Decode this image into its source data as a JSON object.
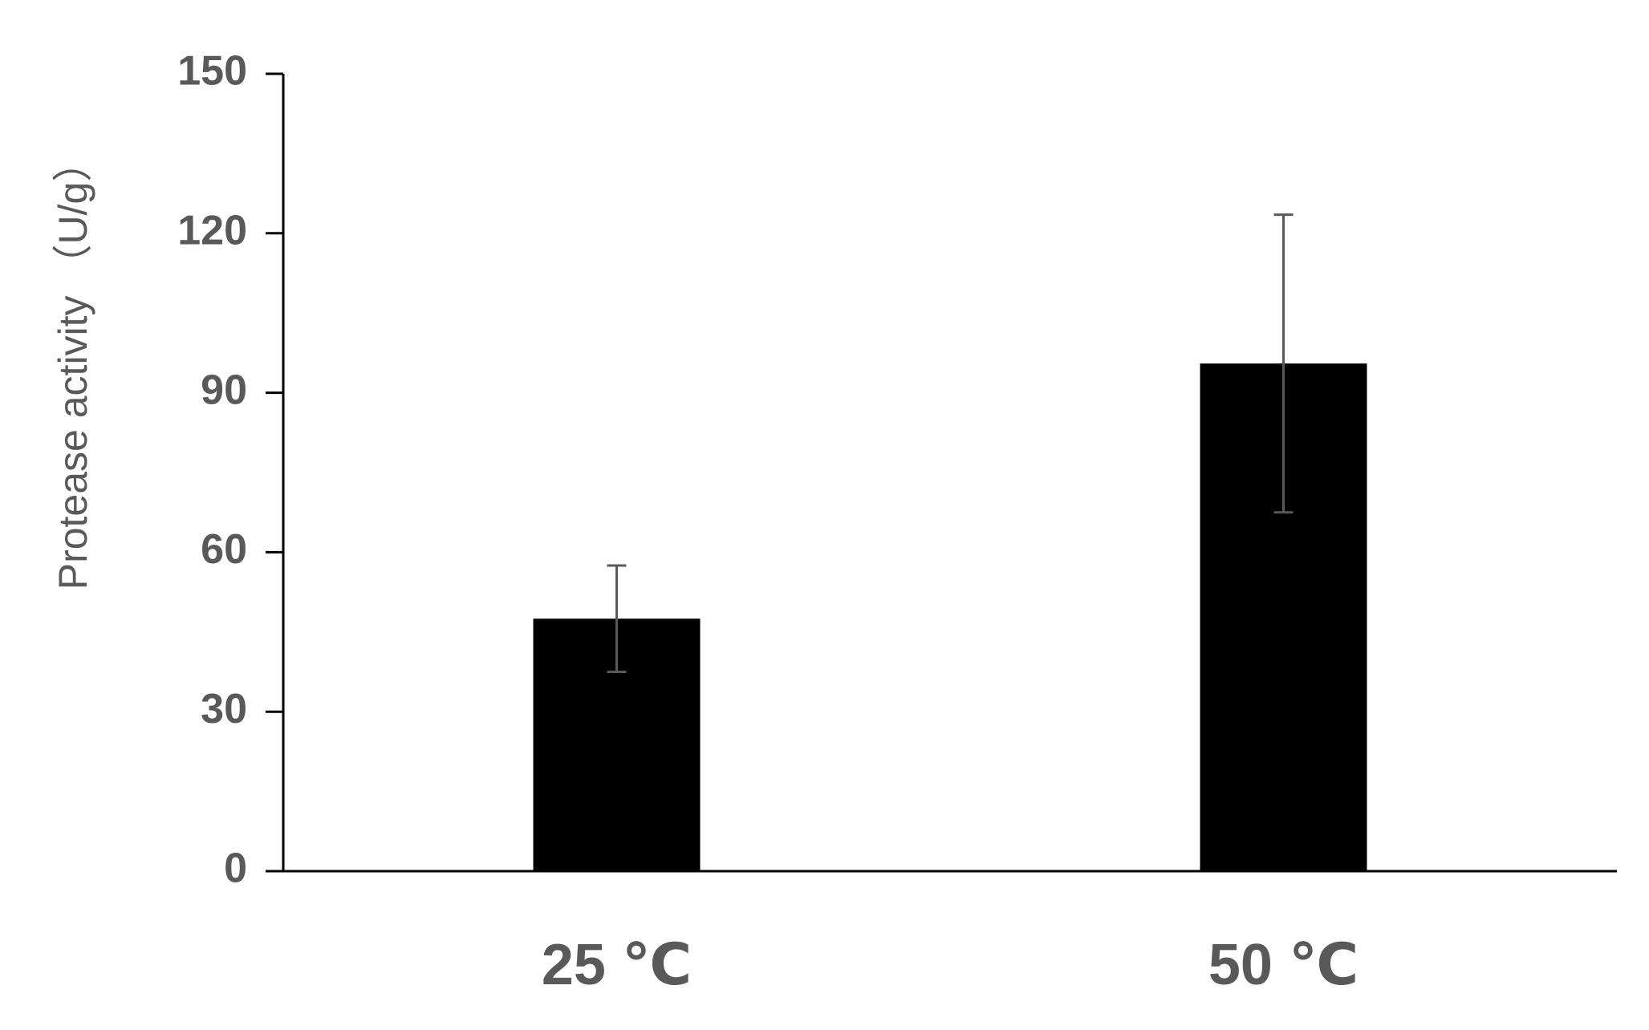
{
  "chart_data": {
    "type": "bar",
    "title": "",
    "xlabel": "",
    "ylabel": "Protease activity （U/g）",
    "categories": [
      "25 ℃",
      "50 ℃"
    ],
    "values": [
      47.5,
      95.5
    ],
    "error": [
      10,
      28
    ],
    "ylim": [
      0,
      150
    ],
    "yticks": [
      "0",
      "30",
      "60",
      "90",
      "120",
      "150"
    ],
    "ytick_values": [
      0,
      30,
      60,
      90,
      120,
      150
    ],
    "grid": false,
    "legend": "none",
    "colors": {
      "bar": "#000000",
      "axis": "#000000",
      "error_bar": "#595959",
      "text": "#595959"
    }
  }
}
